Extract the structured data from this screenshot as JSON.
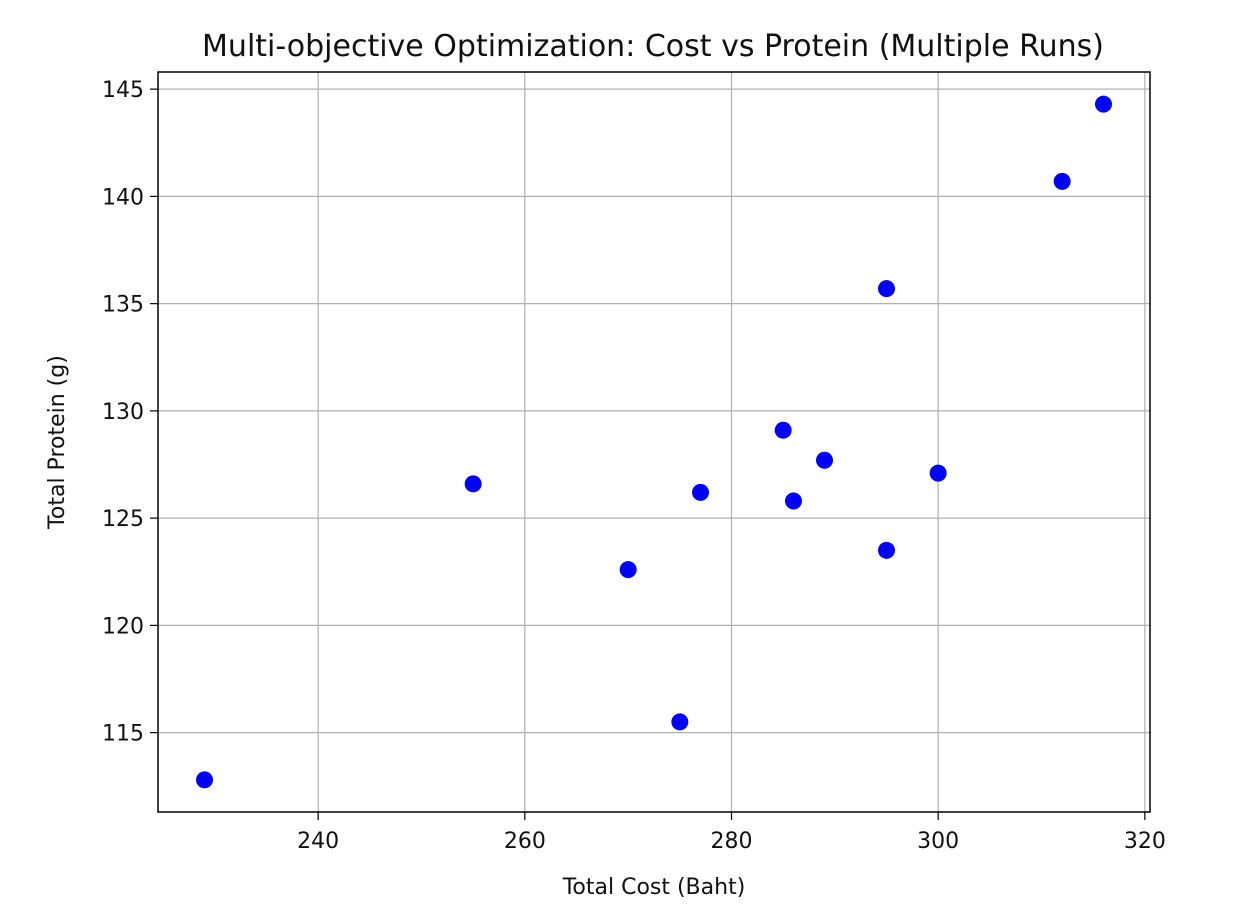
{
  "chart_data": {
    "type": "scatter",
    "title": "Multi-objective Optimization: Cost vs Protein (Multiple Runs)",
    "xlabel": "Total Cost (Baht)",
    "ylabel": "Total Protein (g)",
    "xlim": [
      224.5,
      320.5
    ],
    "ylim": [
      111.3,
      145.8
    ],
    "xticks": [
      240,
      260,
      280,
      300,
      320
    ],
    "yticks": [
      115,
      120,
      125,
      130,
      135,
      140,
      145
    ],
    "grid": true,
    "legend": "none",
    "marker_color": "#0000ff",
    "series": [
      {
        "points": [
          {
            "x": 229,
            "y": 112.8
          },
          {
            "x": 255,
            "y": 126.6
          },
          {
            "x": 270,
            "y": 122.6
          },
          {
            "x": 275,
            "y": 115.5
          },
          {
            "x": 277,
            "y": 126.2
          },
          {
            "x": 285,
            "y": 129.1
          },
          {
            "x": 286,
            "y": 125.8
          },
          {
            "x": 289,
            "y": 127.7
          },
          {
            "x": 295,
            "y": 135.7
          },
          {
            "x": 295,
            "y": 123.5
          },
          {
            "x": 300,
            "y": 127.1
          },
          {
            "x": 312,
            "y": 140.7
          },
          {
            "x": 316,
            "y": 144.3
          }
        ]
      }
    ]
  }
}
